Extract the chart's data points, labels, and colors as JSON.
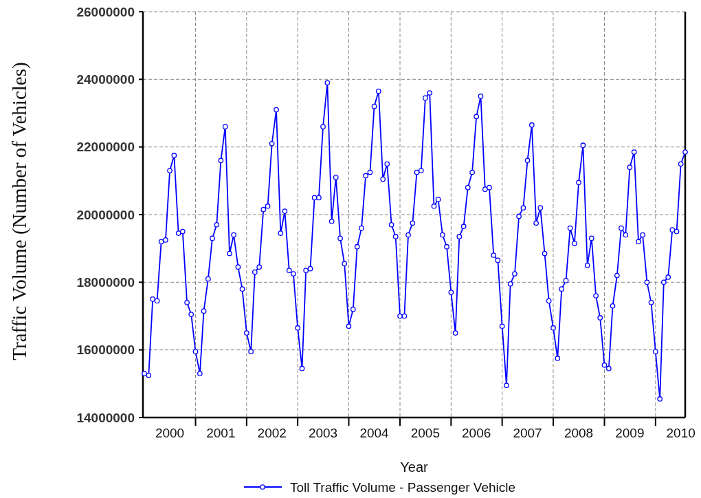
{
  "chart_data": {
    "type": "line",
    "xlabel": "Year",
    "ylabel": "Traffic Volume (Number of Vehicles)",
    "x": [
      "2000-01",
      "2000-02",
      "2000-03",
      "2000-04",
      "2000-05",
      "2000-06",
      "2000-07",
      "2000-08",
      "2000-09",
      "2000-10",
      "2000-11",
      "2000-12",
      "2001-01",
      "2001-02",
      "2001-03",
      "2001-04",
      "2001-05",
      "2001-06",
      "2001-07",
      "2001-08",
      "2001-09",
      "2001-10",
      "2001-11",
      "2001-12",
      "2002-01",
      "2002-02",
      "2002-03",
      "2002-04",
      "2002-05",
      "2002-06",
      "2002-07",
      "2002-08",
      "2002-09",
      "2002-10",
      "2002-11",
      "2002-12",
      "2003-01",
      "2003-02",
      "2003-03",
      "2003-04",
      "2003-05",
      "2003-06",
      "2003-07",
      "2003-08",
      "2003-09",
      "2003-10",
      "2003-11",
      "2003-12",
      "2004-01",
      "2004-02",
      "2004-03",
      "2004-04",
      "2004-05",
      "2004-06",
      "2004-07",
      "2004-08",
      "2004-09",
      "2004-10",
      "2004-11",
      "2004-12",
      "2005-01",
      "2005-02",
      "2005-03",
      "2005-04",
      "2005-05",
      "2005-06",
      "2005-07",
      "2005-08",
      "2005-09",
      "2005-10",
      "2005-11",
      "2005-12",
      "2006-01",
      "2006-02",
      "2006-03",
      "2006-04",
      "2006-05",
      "2006-06",
      "2006-07",
      "2006-08",
      "2006-09",
      "2006-10",
      "2006-11",
      "2006-12",
      "2007-01",
      "2007-02",
      "2007-03",
      "2007-04",
      "2007-05",
      "2007-06",
      "2007-07",
      "2007-08",
      "2007-09",
      "2007-10",
      "2007-11",
      "2007-12",
      "2008-01",
      "2008-02",
      "2008-03",
      "2008-04",
      "2008-05",
      "2008-06",
      "2008-07",
      "2008-08",
      "2008-09",
      "2008-10",
      "2008-11",
      "2008-12",
      "2009-01",
      "2009-02",
      "2009-03",
      "2009-04",
      "2009-05",
      "2009-06",
      "2009-07",
      "2009-08",
      "2009-09",
      "2009-10",
      "2009-11",
      "2009-12",
      "2010-01",
      "2010-02",
      "2010-03",
      "2010-04",
      "2010-05",
      "2010-06",
      "2010-07",
      "2010-08"
    ],
    "series": [
      {
        "name": "Toll Traffic Volume - Passenger Vehicle",
        "color": "#0000ff",
        "values": [
          15300000,
          15250000,
          17500000,
          17450000,
          19200000,
          19250000,
          21300000,
          21750000,
          19450000,
          19500000,
          17400000,
          17050000,
          15950000,
          15300000,
          17150000,
          18100000,
          19300000,
          19700000,
          21600000,
          22600000,
          18850000,
          19400000,
          18450000,
          17800000,
          16500000,
          15950000,
          18300000,
          18450000,
          20150000,
          20250000,
          22100000,
          23100000,
          19450000,
          20100000,
          18350000,
          18250000,
          16650000,
          15450000,
          18350000,
          18400000,
          20500000,
          20500000,
          22600000,
          23900000,
          19800000,
          21100000,
          19300000,
          18550000,
          16700000,
          17200000,
          19050000,
          19600000,
          21150000,
          21250000,
          23200000,
          23650000,
          21050000,
          21500000,
          19700000,
          19350000,
          17000000,
          17000000,
          19400000,
          19750000,
          21250000,
          21300000,
          23450000,
          23600000,
          20250000,
          20450000,
          19400000,
          19050000,
          17700000,
          16500000,
          19350000,
          19650000,
          20800000,
          21250000,
          22900000,
          23500000,
          20750000,
          20800000,
          18800000,
          18650000,
          16700000,
          14950000,
          17950000,
          18250000,
          19950000,
          20200000,
          21600000,
          22650000,
          19750000,
          20200000,
          18850000,
          17450000,
          16650000,
          15750000,
          17800000,
          18050000,
          19600000,
          19150000,
          20950000,
          22050000,
          18500000,
          19300000,
          17600000,
          16950000,
          15550000,
          15450000,
          17300000,
          18200000,
          19600000,
          19400000,
          21400000,
          21850000,
          19200000,
          19400000,
          18000000,
          17400000,
          15950000,
          14550000,
          18000000,
          18150000,
          19550000,
          19500000,
          21500000,
          21850000
        ]
      }
    ],
    "xlim": [
      "2000-01",
      "2010-08"
    ],
    "xticks": [
      {
        "value": "2000-07",
        "label": "2000"
      },
      {
        "value": "2001-01",
        "label": null
      },
      {
        "value": "2001-07",
        "label": "2001"
      },
      {
        "value": "2002-01",
        "label": null
      },
      {
        "value": "2002-07",
        "label": "2002"
      },
      {
        "value": "2003-01",
        "label": null
      },
      {
        "value": "2003-07",
        "label": "2003"
      },
      {
        "value": "2004-01",
        "label": null
      },
      {
        "value": "2004-07",
        "label": "2004"
      },
      {
        "value": "2005-01",
        "label": null
      },
      {
        "value": "2005-07",
        "label": "2005"
      },
      {
        "value": "2006-01",
        "label": null
      },
      {
        "value": "2006-07",
        "label": "2006"
      },
      {
        "value": "2007-01",
        "label": null
      },
      {
        "value": "2007-07",
        "label": "2007"
      },
      {
        "value": "2008-01",
        "label": null
      },
      {
        "value": "2008-07",
        "label": "2008"
      },
      {
        "value": "2009-01",
        "label": null
      },
      {
        "value": "2009-07",
        "label": "2009"
      },
      {
        "value": "2010-01",
        "label": null
      },
      {
        "value": "2010-07",
        "label": "2010"
      }
    ],
    "ylim": [
      14000000,
      26000000
    ],
    "yticks": [
      14000000,
      16000000,
      18000000,
      20000000,
      22000000,
      24000000,
      26000000
    ],
    "grid": true,
    "legend": "bottom",
    "marker": "circle",
    "line_style": "solid"
  }
}
